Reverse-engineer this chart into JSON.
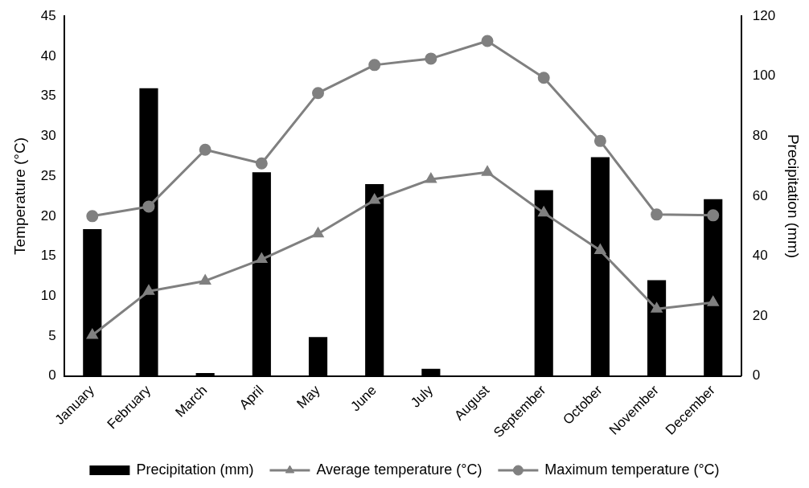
{
  "chart_data": {
    "type": "bar",
    "ylabel": "Temperature (°C)",
    "y2label": "Precipitation (mm)",
    "categories": [
      "January",
      "February",
      "March",
      "April",
      "May",
      "June",
      "July",
      "August",
      "September",
      "October",
      "November",
      "December"
    ],
    "series": [
      {
        "name": "Precipitation (mm)",
        "axis": "y2",
        "color": "#000000",
        "values": [
          49,
          96,
          1,
          68,
          13,
          64,
          2.4,
          0,
          62,
          73,
          32,
          59
        ]
      },
      {
        "name": "Average temperature (°C)",
        "type": "line",
        "marker": "triangle",
        "color": "#808080",
        "values": [
          5.1,
          10.6,
          11.9,
          14.6,
          17.8,
          22.0,
          24.6,
          25.5,
          20.4,
          15.7,
          8.4,
          9.2
        ]
      },
      {
        "name": "Maximum temperature (°C)",
        "type": "line",
        "marker": "circle",
        "color": "#808080",
        "values": [
          20.0,
          21.2,
          28.3,
          26.6,
          35.4,
          38.9,
          39.7,
          41.9,
          37.3,
          29.4,
          20.2,
          20.1
        ]
      }
    ],
    "ylim": [
      0,
      45
    ],
    "yticks": [
      0,
      5,
      10,
      15,
      20,
      25,
      30,
      35,
      40,
      45
    ],
    "y2lim": [
      0,
      120
    ],
    "y2ticks": [
      0,
      20,
      40,
      60,
      80,
      100,
      120
    ],
    "grid": false,
    "legend": "bottom"
  }
}
